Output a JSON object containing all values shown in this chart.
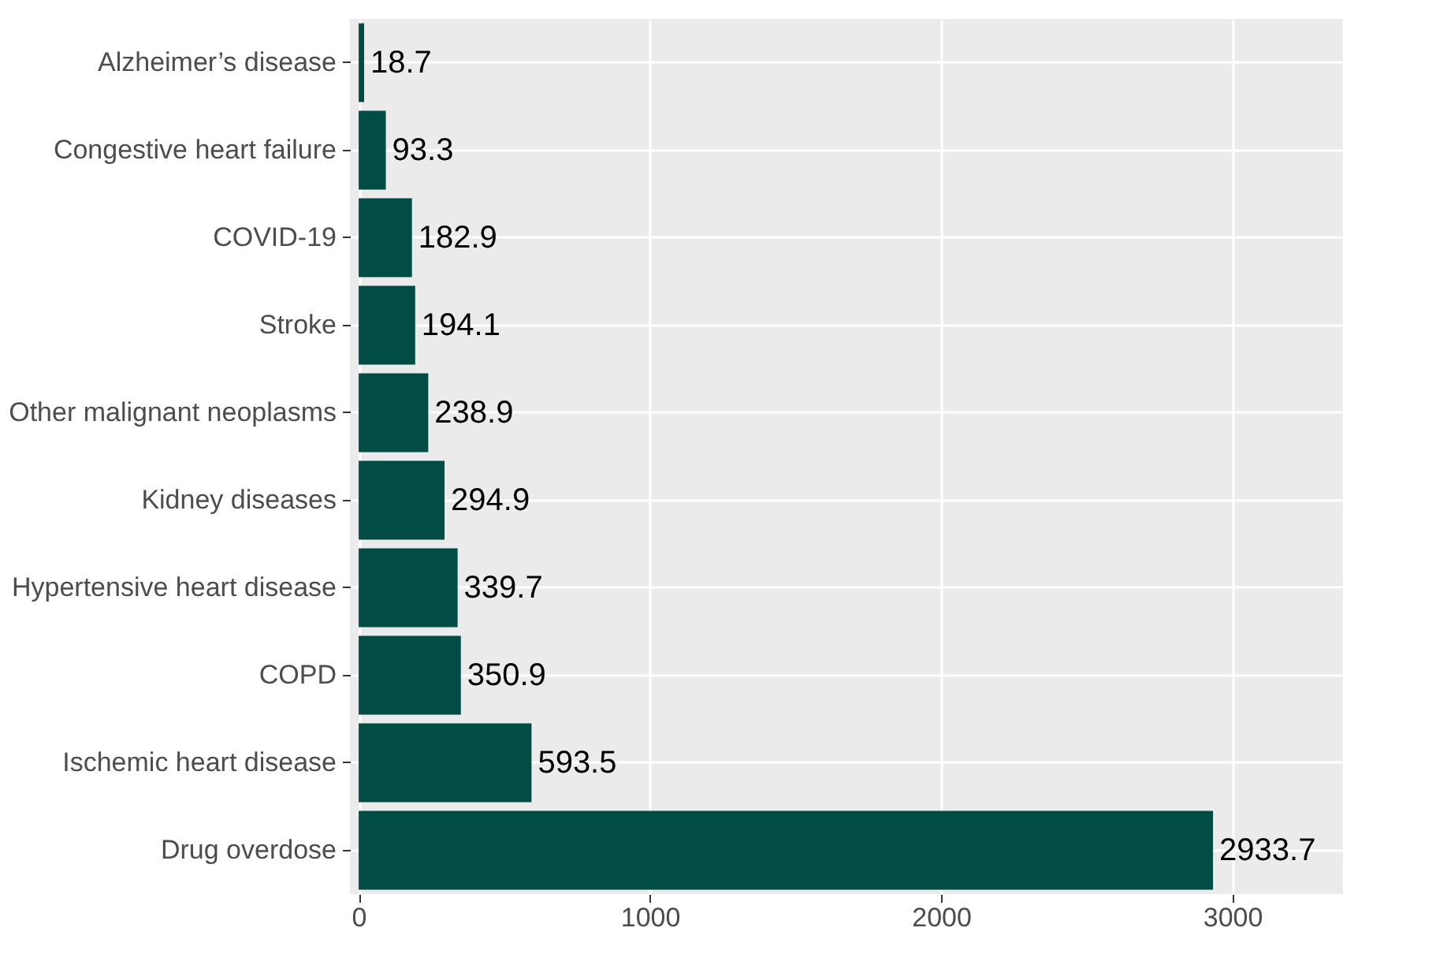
{
  "chart_data": {
    "type": "bar",
    "orientation": "horizontal",
    "categories": [
      "Alzheimer’s disease",
      "Congestive heart failure",
      "COVID-19",
      "Stroke",
      "Other malignant neoplasms",
      "Kidney diseases",
      "Hypertensive heart disease",
      "COPD",
      "Ischemic heart disease",
      "Drug overdose"
    ],
    "values": [
      18.7,
      93.3,
      182.9,
      194.1,
      238.9,
      294.9,
      339.7,
      350.9,
      593.5,
      2933.7
    ],
    "color": "#014d45",
    "data_labels": true,
    "grid": true,
    "xlim": [
      -30,
      3380
    ],
    "xticks": [
      0,
      1000,
      2000,
      3000
    ]
  }
}
